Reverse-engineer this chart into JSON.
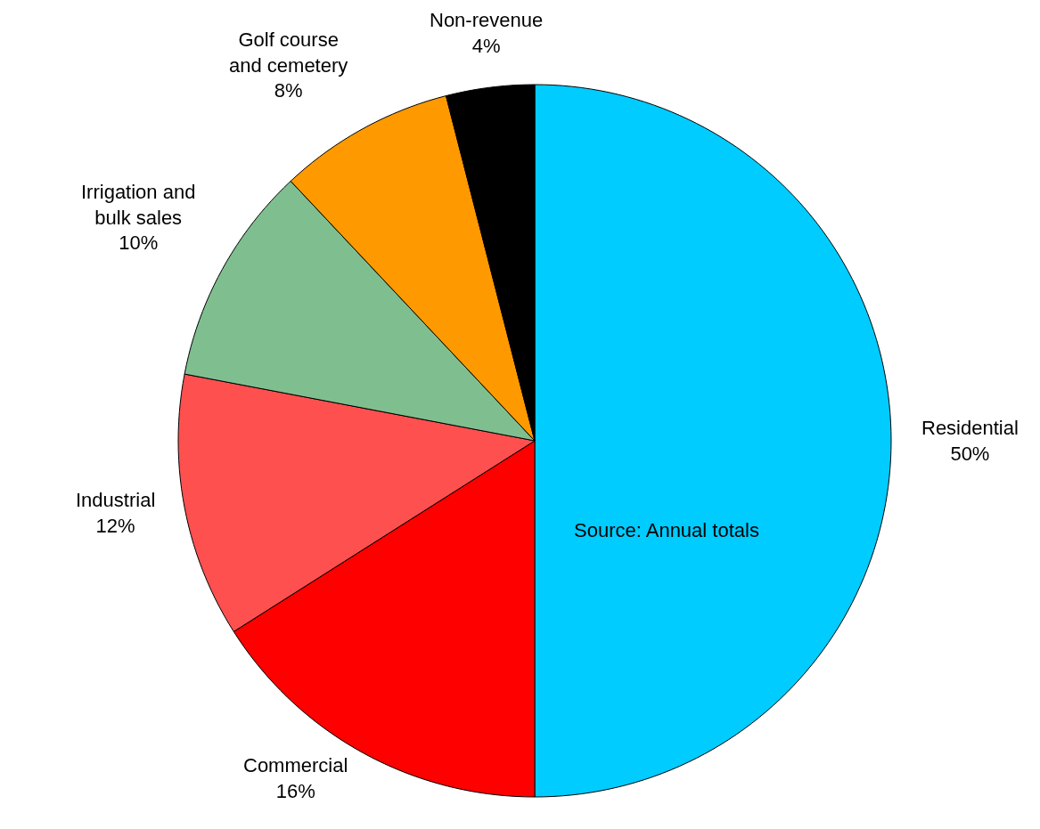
{
  "chart_data": {
    "type": "pie",
    "categories": [
      "Residential",
      "Commercial",
      "Industrial",
      "Irrigation and\nbulk sales",
      "Golf course\nand cemetery",
      "Non-revenue"
    ],
    "values": [
      50,
      16,
      12,
      10,
      8,
      4
    ],
    "value_labels": [
      "50%",
      "16%",
      "12%",
      "10%",
      "8%",
      "4%"
    ],
    "colors": [
      "#00ccff",
      "#ff0000",
      "#ff5050",
      "#7fbf8f",
      "#ff9900",
      "#000000"
    ],
    "annotations": [
      "Source: Annual totals"
    ],
    "legend": false
  }
}
